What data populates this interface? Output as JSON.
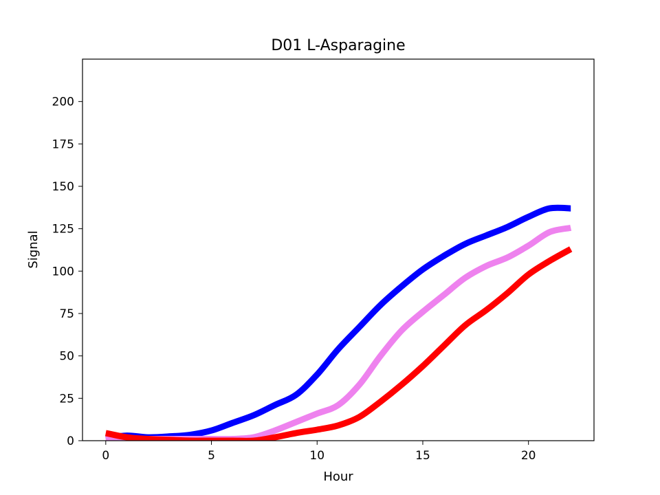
{
  "chart_data": {
    "type": "line",
    "title": "D01 L-Asparagine",
    "xlabel": "Hour",
    "ylabel": "Signal",
    "xlim": [
      -1.1,
      23.1
    ],
    "ylim": [
      0,
      225
    ],
    "xticks": [
      0,
      5,
      10,
      15,
      20
    ],
    "yticks": [
      0,
      25,
      50,
      75,
      100,
      125,
      150,
      175,
      200
    ],
    "grid": false,
    "legend": "none",
    "x": [
      0,
      1,
      2,
      3,
      4,
      5,
      6,
      7,
      8,
      9,
      10,
      11,
      12,
      13,
      14,
      15,
      16,
      17,
      18,
      19,
      20,
      21,
      22
    ],
    "series": [
      {
        "color": "#0000ff",
        "values": [
          1.5,
          3,
          2,
          2.5,
          3.5,
          6,
          10.5,
          15,
          21,
          27,
          39,
          54,
          67,
          80,
          91,
          101,
          109,
          116,
          121,
          126,
          132,
          137,
          137
        ]
      },
      {
        "color": "#ee82ee",
        "values": [
          0.8,
          1,
          1,
          1,
          1,
          1,
          1,
          2,
          6,
          11,
          16,
          21,
          33,
          50,
          65,
          76,
          86,
          96,
          103,
          108,
          115,
          123,
          125.5
        ]
      },
      {
        "color": "#ff0000",
        "values": [
          4.5,
          2,
          1,
          0.5,
          0,
          0,
          0,
          0,
          2,
          4.5,
          6.5,
          9,
          14,
          23,
          33,
          44,
          56,
          68,
          77,
          87,
          98,
          106,
          113
        ]
      }
    ]
  }
}
